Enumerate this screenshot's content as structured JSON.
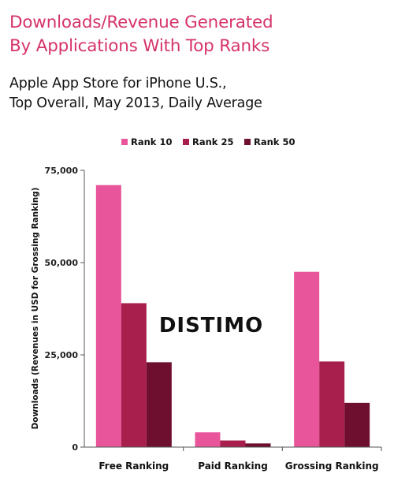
{
  "header": {
    "title_line1": "Downloads/Revenue Generated",
    "title_line2": "By Applications With Top Ranks",
    "subtitle_line1": "Apple App Store for iPhone U.S.,",
    "subtitle_line2": "Top Overall, May 2013, Daily Average"
  },
  "watermark": "DISTIMO",
  "chart_data": {
    "type": "bar",
    "categories": [
      "Free Ranking",
      "Paid Ranking",
      "Grossing Ranking"
    ],
    "series": [
      {
        "name": "Rank 10",
        "color": "#e8559a",
        "values": [
          71000,
          4000,
          47500
        ]
      },
      {
        "name": "Rank 25",
        "color": "#a81e4c",
        "values": [
          39000,
          1800,
          23200
        ]
      },
      {
        "name": "Rank 50",
        "color": "#6e0f30",
        "values": [
          23000,
          1000,
          12000
        ]
      }
    ],
    "ylabel": "Downloads (Revenues in USD for Grossing Ranking)",
    "ylim": [
      0,
      75000
    ],
    "yticks": [
      0,
      25000,
      50000,
      75000
    ],
    "ytick_labels": [
      "0",
      "25,000",
      "50,000",
      "75,000"
    ],
    "legend_position": "top-center",
    "grid": false
  }
}
